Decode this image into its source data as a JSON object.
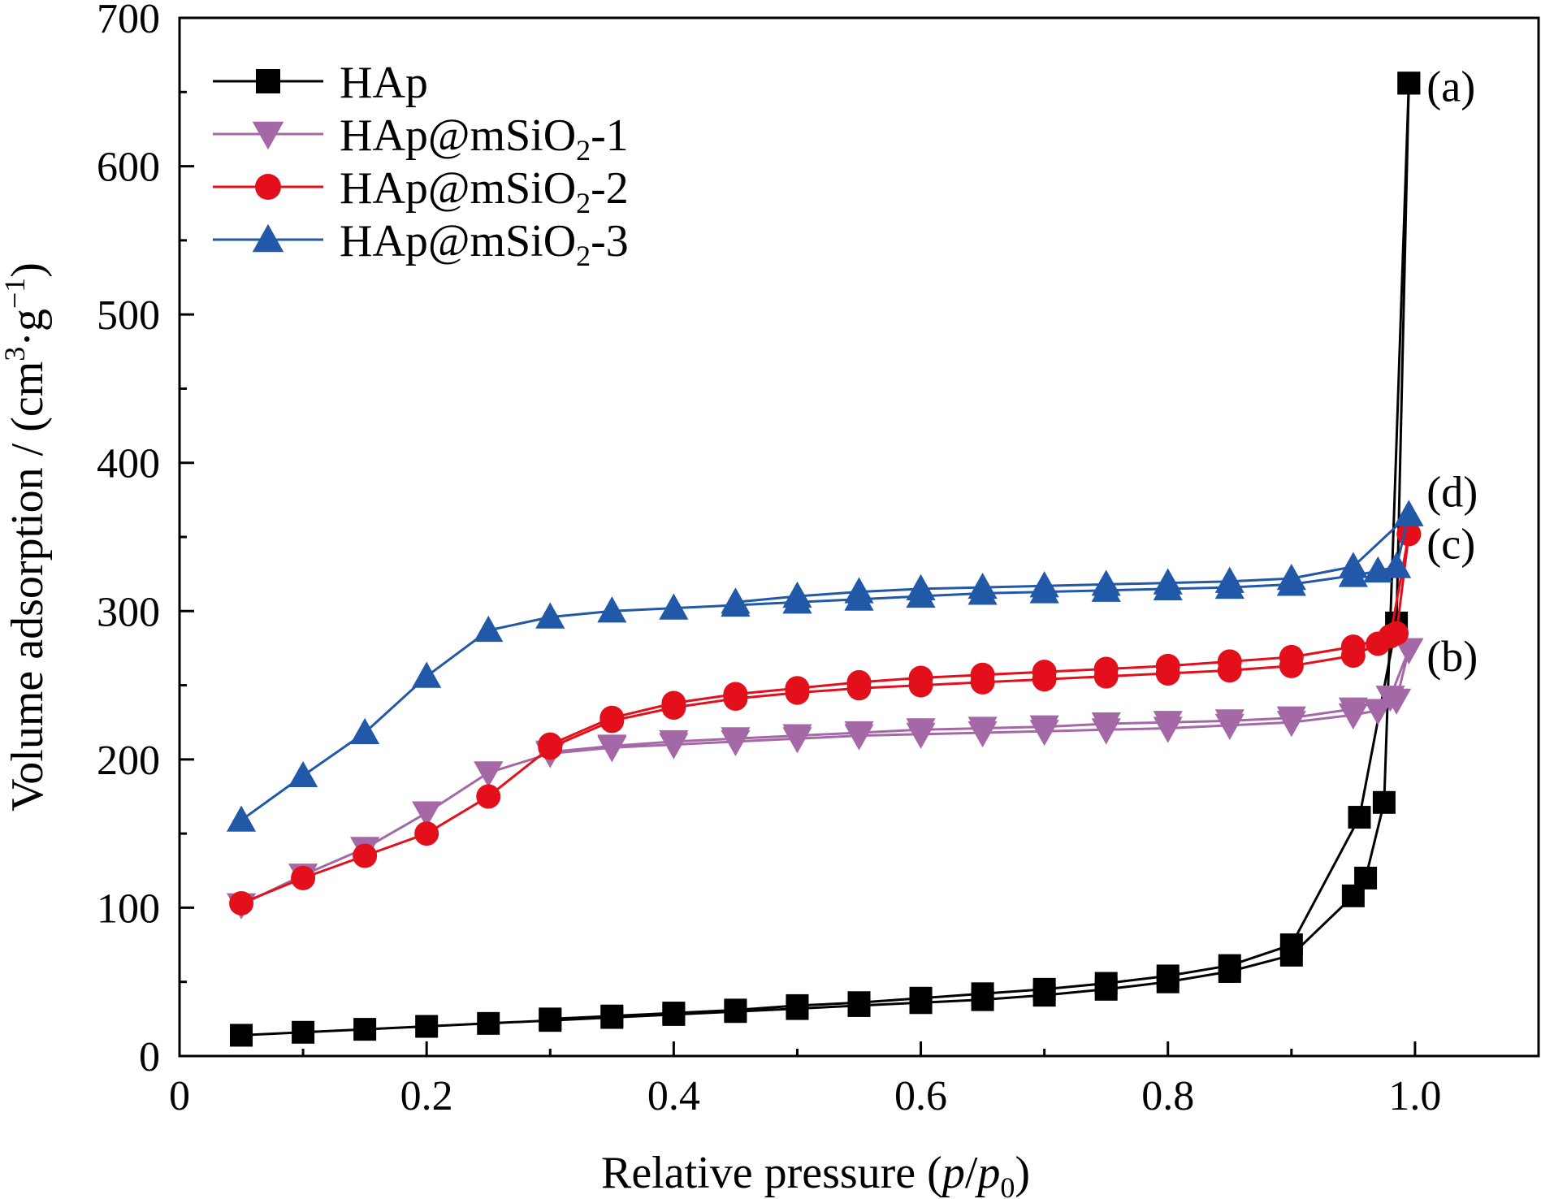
{
  "chart_data": {
    "type": "line",
    "xlabel": {
      "prefix": "Relative pressure (",
      "p": "p",
      "slash": "/",
      "p0_base": "p",
      "p0_sub": "0",
      "suffix": ")"
    },
    "ylabel": {
      "main": "Volume adsorption / (cm",
      "sup1": "3",
      "mid": "·g",
      "sup2": "−1",
      "end": ")"
    },
    "xlim": [
      0,
      1.1
    ],
    "ylim": [
      0,
      700
    ],
    "xticks": [
      {
        "value": 0,
        "label": "0"
      },
      {
        "value": 0.2,
        "label": "0.2"
      },
      {
        "value": 0.4,
        "label": "0.4"
      },
      {
        "value": 0.6,
        "label": "0.6"
      },
      {
        "value": 0.8,
        "label": "0.8"
      },
      {
        "value": 1.0,
        "label": "1.0"
      }
    ],
    "yticks": [
      {
        "value": 0,
        "label": "0"
      },
      {
        "value": 100,
        "label": "100"
      },
      {
        "value": 200,
        "label": "200"
      },
      {
        "value": 300,
        "label": "300"
      },
      {
        "value": 400,
        "label": "400"
      },
      {
        "value": 500,
        "label": "500"
      },
      {
        "value": 600,
        "label": "600"
      },
      {
        "value": 700,
        "label": "700"
      }
    ],
    "grid": false,
    "legend_position": "top-left",
    "series": [
      {
        "name": "HAp",
        "name_base": "HAp",
        "name_sub": "",
        "name_suffix": "",
        "color": "#000000",
        "marker": "square",
        "adsorption": [
          [
            0.05,
            14
          ],
          [
            0.1,
            16
          ],
          [
            0.15,
            18
          ],
          [
            0.2,
            20
          ],
          [
            0.25,
            22
          ],
          [
            0.3,
            24
          ],
          [
            0.35,
            26
          ],
          [
            0.4,
            28
          ],
          [
            0.45,
            30
          ],
          [
            0.5,
            32
          ],
          [
            0.55,
            34
          ],
          [
            0.6,
            36
          ],
          [
            0.65,
            38
          ],
          [
            0.7,
            41
          ],
          [
            0.75,
            45
          ],
          [
            0.8,
            50
          ],
          [
            0.85,
            57
          ],
          [
            0.9,
            68
          ],
          [
            0.95,
            108
          ],
          [
            0.96,
            120
          ],
          [
            0.975,
            171
          ],
          [
            0.995,
            656
          ]
        ],
        "desorption": [
          [
            0.995,
            656
          ],
          [
            0.985,
            292
          ],
          [
            0.955,
            161
          ],
          [
            0.9,
            75
          ],
          [
            0.85,
            61
          ],
          [
            0.8,
            54
          ],
          [
            0.75,
            49
          ],
          [
            0.7,
            45
          ],
          [
            0.65,
            42
          ],
          [
            0.6,
            39
          ],
          [
            0.55,
            36
          ],
          [
            0.5,
            34
          ],
          [
            0.45,
            31
          ],
          [
            0.4,
            29
          ],
          [
            0.35,
            27
          ],
          [
            0.3,
            25
          ]
        ],
        "annotation": "(a)"
      },
      {
        "name": "HAp@mSiO2-1",
        "name_base": "HAp@mSiO",
        "name_sub": "2",
        "name_suffix": "-1",
        "color": "#a568a6",
        "marker": "triangle-down",
        "adsorption": [
          [
            0.05,
            102
          ],
          [
            0.1,
            122
          ],
          [
            0.15,
            140
          ],
          [
            0.2,
            164
          ],
          [
            0.25,
            191
          ],
          [
            0.3,
            204
          ],
          [
            0.35,
            208
          ],
          [
            0.4,
            210
          ],
          [
            0.45,
            212
          ],
          [
            0.5,
            214
          ],
          [
            0.55,
            216
          ],
          [
            0.6,
            217
          ],
          [
            0.65,
            218
          ],
          [
            0.7,
            219
          ],
          [
            0.75,
            220
          ],
          [
            0.8,
            221
          ],
          [
            0.85,
            223
          ],
          [
            0.9,
            225
          ],
          [
            0.95,
            230
          ],
          [
            0.97,
            233
          ],
          [
            0.985,
            240
          ],
          [
            0.995,
            274
          ]
        ],
        "desorption": [
          [
            0.995,
            274
          ],
          [
            0.98,
            242
          ],
          [
            0.95,
            234
          ],
          [
            0.9,
            228
          ],
          [
            0.85,
            226
          ],
          [
            0.8,
            225
          ],
          [
            0.75,
            224
          ],
          [
            0.7,
            222
          ],
          [
            0.65,
            221
          ],
          [
            0.6,
            220
          ],
          [
            0.55,
            218
          ],
          [
            0.5,
            216
          ],
          [
            0.45,
            214
          ],
          [
            0.4,
            212
          ],
          [
            0.35,
            209
          ],
          [
            0.3,
            205
          ]
        ],
        "annotation": "(b)"
      },
      {
        "name": "HAp@mSiO2-2",
        "name_base": "HAp@mSiO",
        "name_sub": "2",
        "name_suffix": "-2",
        "color": "#e3101c",
        "marker": "circle",
        "adsorption": [
          [
            0.05,
            103
          ],
          [
            0.1,
            120
          ],
          [
            0.15,
            135
          ],
          [
            0.2,
            150
          ],
          [
            0.25,
            175
          ],
          [
            0.3,
            208
          ],
          [
            0.35,
            226
          ],
          [
            0.4,
            235
          ],
          [
            0.45,
            241
          ],
          [
            0.5,
            245
          ],
          [
            0.55,
            248
          ],
          [
            0.6,
            250
          ],
          [
            0.65,
            252
          ],
          [
            0.7,
            254
          ],
          [
            0.75,
            256
          ],
          [
            0.8,
            258
          ],
          [
            0.85,
            260
          ],
          [
            0.9,
            263
          ],
          [
            0.95,
            270
          ],
          [
            0.97,
            278
          ],
          [
            0.985,
            285
          ],
          [
            0.995,
            352
          ]
        ],
        "desorption": [
          [
            0.995,
            352
          ],
          [
            0.98,
            283
          ],
          [
            0.95,
            276
          ],
          [
            0.9,
            269
          ],
          [
            0.85,
            266
          ],
          [
            0.8,
            263
          ],
          [
            0.75,
            261
          ],
          [
            0.7,
            259
          ],
          [
            0.65,
            257
          ],
          [
            0.6,
            255
          ],
          [
            0.55,
            252
          ],
          [
            0.5,
            248
          ],
          [
            0.45,
            244
          ],
          [
            0.4,
            238
          ],
          [
            0.35,
            228
          ],
          [
            0.3,
            210
          ]
        ],
        "annotation": "(c)"
      },
      {
        "name": "HAp@mSiO2-3",
        "name_base": "HAp@mSiO",
        "name_sub": "2",
        "name_suffix": "-3",
        "color": "#2258a8",
        "marker": "triangle-up",
        "adsorption": [
          [
            0.05,
            159
          ],
          [
            0.1,
            189
          ],
          [
            0.15,
            218
          ],
          [
            0.2,
            256
          ],
          [
            0.25,
            287
          ],
          [
            0.3,
            296
          ],
          [
            0.35,
            300
          ],
          [
            0.4,
            302
          ],
          [
            0.45,
            304
          ],
          [
            0.5,
            306
          ],
          [
            0.55,
            308
          ],
          [
            0.6,
            310
          ],
          [
            0.65,
            312
          ],
          [
            0.7,
            313
          ],
          [
            0.75,
            314
          ],
          [
            0.8,
            315
          ],
          [
            0.85,
            316
          ],
          [
            0.9,
            318
          ],
          [
            0.95,
            324
          ],
          [
            0.97,
            327
          ],
          [
            0.985,
            330
          ],
          [
            0.995,
            365
          ]
        ],
        "desorption": [
          [
            0.995,
            365
          ],
          [
            0.95,
            330
          ],
          [
            0.9,
            322
          ],
          [
            0.85,
            320
          ],
          [
            0.8,
            319
          ],
          [
            0.75,
            318
          ],
          [
            0.7,
            317
          ],
          [
            0.65,
            316
          ],
          [
            0.6,
            315
          ],
          [
            0.55,
            313
          ],
          [
            0.5,
            310
          ],
          [
            0.45,
            306
          ]
        ],
        "annotation": "(d)"
      }
    ]
  }
}
